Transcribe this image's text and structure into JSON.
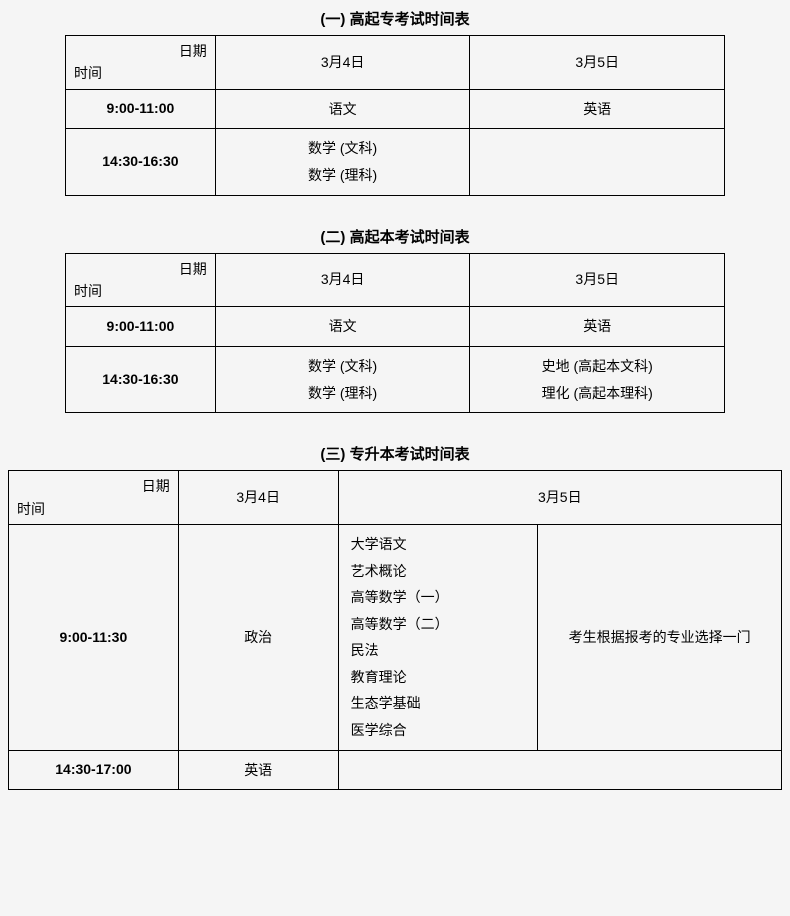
{
  "tables": [
    {
      "title": "(一) 高起专考试时间表",
      "header": {
        "date_label": "日期",
        "time_label": "时间",
        "col1": "3月4日",
        "col2": "3月5日"
      },
      "rows": [
        {
          "time": "9:00-11:00",
          "c1_lines": [
            "语文"
          ],
          "c2_lines": [
            "英语"
          ]
        },
        {
          "time": "14:30-16:30",
          "c1_lines": [
            "数学 (文科)",
            "数学 (理科)"
          ],
          "c2_lines": []
        }
      ],
      "col_widths": [
        "150px",
        "255px",
        "255px"
      ],
      "layout": "simple"
    },
    {
      "title": "(二) 高起本考试时间表",
      "header": {
        "date_label": "日期",
        "time_label": "时间",
        "col1": "3月4日",
        "col2": "3月5日"
      },
      "rows": [
        {
          "time": "9:00-11:00",
          "c1_lines": [
            "语文"
          ],
          "c2_lines": [
            "英语"
          ]
        },
        {
          "time": "14:30-16:30",
          "c1_lines": [
            "数学 (文科)",
            "数学 (理科)"
          ],
          "c2_lines": [
            "史地 (高起本文科)",
            "理化 (高起本理科)"
          ]
        }
      ],
      "col_widths": [
        "150px",
        "255px",
        "255px"
      ],
      "layout": "simple"
    },
    {
      "title": "(三) 专升本考试时间表",
      "header": {
        "date_label": "日期",
        "time_label": "时间",
        "col1": "3月4日",
        "col2": "3月5日"
      },
      "rows": [
        {
          "time": "9:00-11:30",
          "c1_lines": [
            "政治"
          ],
          "c2a_lines": [
            "大学语文",
            "艺术概论",
            "高等数学（一）",
            "高等数学（二）",
            "民法",
            "教育理论",
            "生态学基础",
            "医学综合"
          ],
          "c2b": "考生根据报考的专业选择一门"
        },
        {
          "time": "14:30-17:00",
          "c1_lines": [
            "英语"
          ],
          "c2_empty": true
        }
      ],
      "col_widths": [
        "170px",
        "160px",
        "200px",
        "244px"
      ],
      "layout": "split"
    }
  ],
  "colors": {
    "page_bg": "#f5f5f5",
    "border": "#000000",
    "text": "#000000"
  }
}
